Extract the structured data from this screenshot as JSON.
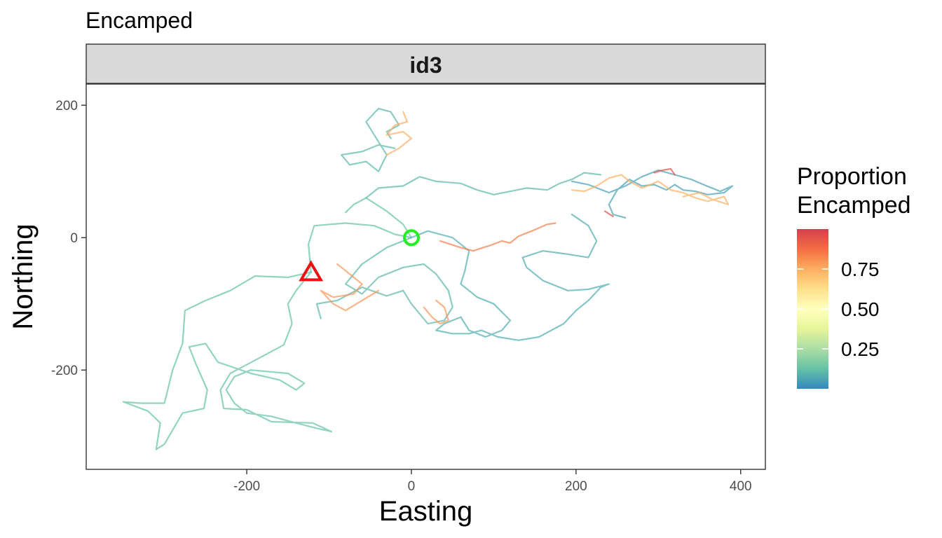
{
  "chart_data": {
    "type": "path",
    "title": "Encamped",
    "facet": "id3",
    "xlabel": "Easting",
    "ylabel": "Northing",
    "xlim": [
      -395,
      430
    ],
    "ylim": [
      -350,
      232
    ],
    "xticks": [
      -200,
      0,
      200,
      400
    ],
    "xtick_labels": [
      "-200",
      "0",
      "200",
      "400"
    ],
    "yticks": [
      -200,
      0,
      200
    ],
    "ytick_labels": [
      "-200",
      "0",
      "200"
    ],
    "grid": false,
    "legend": {
      "title_lines": [
        "Proportion",
        "Encamped"
      ],
      "position": "right",
      "range": [
        0,
        1
      ],
      "ticks": [
        0.25,
        0.5,
        0.75
      ],
      "tick_labels": [
        "0.25",
        "0.50",
        "0.75"
      ],
      "palette": [
        "#3288bd",
        "#66c2a5",
        "#abdda4",
        "#e6f598",
        "#ffffbf",
        "#fee08b",
        "#fdae61",
        "#f46d43",
        "#d53e4f"
      ]
    },
    "start_marker": {
      "shape": "circle",
      "color": "#22ee22",
      "x": 0,
      "y": 0
    },
    "end_marker": {
      "shape": "triangle",
      "color": "#ee1111",
      "x": -122,
      "y": -52
    },
    "series": [
      {
        "value": 0.12,
        "points": [
          [
            0,
            0
          ],
          [
            -20,
            5
          ],
          [
            -45,
            18
          ],
          [
            -80,
            22
          ],
          [
            -118,
            18
          ],
          [
            -125,
            -10
          ],
          [
            -122,
            -52
          ]
        ]
      },
      {
        "value": 0.12,
        "points": [
          [
            -122,
            -52
          ],
          [
            -150,
            -60
          ],
          [
            -190,
            -58
          ],
          [
            -220,
            -80
          ],
          [
            -250,
            -95
          ],
          [
            -275,
            -110
          ],
          [
            -278,
            -160
          ],
          [
            -290,
            -200
          ],
          [
            -300,
            -250
          ],
          [
            -330,
            -250
          ],
          [
            -350,
            -248
          ],
          [
            -320,
            -262
          ],
          [
            -305,
            -280
          ],
          [
            -310,
            -320
          ],
          [
            -300,
            -312
          ],
          [
            -278,
            -265
          ],
          [
            -252,
            -258
          ],
          [
            -248,
            -230
          ],
          [
            -262,
            -190
          ],
          [
            -270,
            -165
          ],
          [
            -250,
            -160
          ],
          [
            -235,
            -188
          ],
          [
            -195,
            -205
          ],
          [
            -160,
            -215
          ],
          [
            -140,
            -230
          ],
          [
            -130,
            -220
          ],
          [
            -150,
            -205
          ],
          [
            -195,
            -200
          ],
          [
            -215,
            -210
          ],
          [
            -225,
            -230
          ],
          [
            -215,
            -250
          ],
          [
            -200,
            -265
          ],
          [
            -170,
            -270
          ],
          [
            -140,
            -280
          ],
          [
            -115,
            -288
          ],
          [
            -97,
            -293
          ],
          [
            -120,
            -280
          ],
          [
            -170,
            -278
          ],
          [
            -200,
            -260
          ],
          [
            -228,
            -258
          ],
          [
            -232,
            -230
          ],
          [
            -220,
            -205
          ],
          [
            -185,
            -182
          ],
          [
            -155,
            -162
          ],
          [
            -145,
            -130
          ],
          [
            -150,
            -100
          ],
          [
            -140,
            -80
          ],
          [
            -122,
            -52
          ]
        ]
      },
      {
        "value": 0.1,
        "points": [
          [
            0,
            0
          ],
          [
            -30,
            -15
          ],
          [
            -60,
            -40
          ],
          [
            -80,
            -70
          ],
          [
            -60,
            -85
          ],
          [
            -40,
            -60
          ],
          [
            -10,
            -45
          ],
          [
            15,
            -40
          ],
          [
            30,
            -55
          ],
          [
            45,
            -80
          ],
          [
            50,
            -105
          ],
          [
            40,
            -125
          ],
          [
            20,
            -130
          ],
          [
            0,
            -100
          ],
          [
            -10,
            -80
          ],
          [
            -30,
            -88
          ],
          [
            -60,
            -75
          ],
          [
            -90,
            -95
          ],
          [
            -115,
            -100
          ],
          [
            -110,
            -122
          ]
        ]
      },
      {
        "value": 0.08,
        "points": [
          [
            0,
            0
          ],
          [
            20,
            10
          ],
          [
            50,
            0
          ],
          [
            70,
            -20
          ],
          [
            65,
            -50
          ],
          [
            60,
            -70
          ],
          [
            80,
            -90
          ],
          [
            100,
            -100
          ],
          [
            120,
            -125
          ],
          [
            110,
            -140
          ],
          [
            90,
            -150
          ],
          [
            70,
            -140
          ],
          [
            60,
            -120
          ],
          [
            40,
            -130
          ],
          [
            30,
            -140
          ],
          [
            50,
            -145
          ],
          [
            70,
            -145
          ],
          [
            85,
            -140
          ],
          [
            105,
            -150
          ],
          [
            130,
            -155
          ],
          [
            155,
            -150
          ],
          [
            185,
            -130
          ],
          [
            200,
            -110
          ],
          [
            215,
            -95
          ],
          [
            230,
            -75
          ],
          [
            240,
            -70
          ],
          [
            215,
            -78
          ],
          [
            190,
            -80
          ],
          [
            160,
            -65
          ],
          [
            140,
            -45
          ],
          [
            135,
            -30
          ],
          [
            160,
            -20
          ],
          [
            190,
            -25
          ],
          [
            215,
            -30
          ],
          [
            225,
            -5
          ],
          [
            215,
            18
          ],
          [
            195,
            35
          ]
        ]
      },
      {
        "value": 0.12,
        "points": [
          [
            0,
            0
          ],
          [
            -10,
            20
          ],
          [
            -30,
            40
          ],
          [
            -55,
            60
          ],
          [
            -70,
            50
          ],
          [
            -80,
            38
          ]
        ]
      },
      {
        "value": 0.1,
        "points": [
          [
            -55,
            60
          ],
          [
            -40,
            75
          ],
          [
            -10,
            78
          ],
          [
            10,
            92
          ],
          [
            30,
            85
          ],
          [
            60,
            82
          ],
          [
            80,
            72
          ],
          [
            100,
            65
          ],
          [
            140,
            75
          ],
          [
            165,
            72
          ],
          [
            180,
            82
          ],
          [
            195,
            88
          ],
          [
            210,
            98
          ],
          [
            230,
            95
          ]
        ]
      },
      {
        "value": 0.85,
        "points": [
          [
            35,
            -5
          ],
          [
            60,
            -15
          ],
          [
            75,
            -20
          ],
          [
            95,
            -12
          ],
          [
            110,
            -5
          ],
          [
            120,
            -8
          ],
          [
            130,
            2
          ],
          [
            150,
            12
          ],
          [
            165,
            20
          ],
          [
            175,
            22
          ]
        ]
      },
      {
        "value": 0.8,
        "points": [
          [
            -90,
            -40
          ],
          [
            -75,
            -55
          ],
          [
            -60,
            -70
          ],
          [
            -70,
            -85
          ],
          [
            -95,
            -90
          ],
          [
            -110,
            -80
          ],
          [
            -95,
            -100
          ],
          [
            -80,
            -110
          ],
          [
            -60,
            -95
          ],
          [
            -40,
            -80
          ]
        ]
      },
      {
        "value": 0.8,
        "points": [
          [
            15,
            -105
          ],
          [
            25,
            -120
          ],
          [
            35,
            -130
          ],
          [
            45,
            -125
          ],
          [
            40,
            -105
          ],
          [
            30,
            -95
          ]
        ]
      },
      {
        "value": 0.1,
        "points": [
          [
            -20,
            135
          ],
          [
            -40,
            140
          ],
          [
            -60,
            130
          ],
          [
            -85,
            125
          ],
          [
            -75,
            110
          ],
          [
            -55,
            115
          ],
          [
            -40,
            100
          ],
          [
            -30,
            125
          ],
          [
            -45,
            155
          ],
          [
            -55,
            175
          ],
          [
            -40,
            195
          ],
          [
            -25,
            190
          ],
          [
            -15,
            170
          ],
          [
            -30,
            160
          ],
          [
            -25,
            150
          ]
        ]
      },
      {
        "value": 0.75,
        "points": [
          [
            -30,
            125
          ],
          [
            -15,
            135
          ],
          [
            0,
            150
          ],
          [
            -10,
            160
          ],
          [
            -30,
            155
          ],
          [
            -20,
            170
          ],
          [
            -5,
            175
          ],
          [
            -10,
            190
          ]
        ]
      },
      {
        "value": 0.05,
        "points": [
          [
            195,
            85
          ],
          [
            215,
            80
          ],
          [
            240,
            68
          ],
          [
            260,
            78
          ],
          [
            280,
            92
          ],
          [
            300,
            102
          ],
          [
            320,
            95
          ],
          [
            340,
            88
          ],
          [
            355,
            80
          ],
          [
            375,
            70
          ],
          [
            390,
            78
          ],
          [
            380,
            68
          ],
          [
            360,
            65
          ],
          [
            345,
            70
          ],
          [
            330,
            72
          ],
          [
            320,
            80
          ],
          [
            310,
            72
          ],
          [
            295,
            80
          ],
          [
            280,
            78
          ],
          [
            265,
            88
          ],
          [
            250,
            72
          ],
          [
            240,
            50
          ],
          [
            245,
            35
          ],
          [
            260,
            30
          ]
        ]
      },
      {
        "value": 0.75,
        "points": [
          [
            195,
            72
          ],
          [
            210,
            70
          ],
          [
            225,
            78
          ],
          [
            240,
            90
          ],
          [
            255,
            95
          ],
          [
            265,
            85
          ],
          [
            280,
            75
          ],
          [
            300,
            85
          ],
          [
            315,
            72
          ],
          [
            330,
            68
          ],
          [
            345,
            60
          ],
          [
            360,
            55
          ],
          [
            380,
            62
          ],
          [
            385,
            50
          ],
          [
            365,
            58
          ],
          [
            350,
            68
          ],
          [
            330,
            62
          ]
        ]
      },
      {
        "value": 0.95,
        "points": [
          [
            295,
            98
          ],
          [
            305,
            102
          ],
          [
            315,
            104
          ],
          [
            320,
            95
          ]
        ]
      },
      {
        "value": 0.95,
        "points": [
          [
            235,
            40
          ],
          [
            245,
            32
          ]
        ]
      }
    ]
  }
}
